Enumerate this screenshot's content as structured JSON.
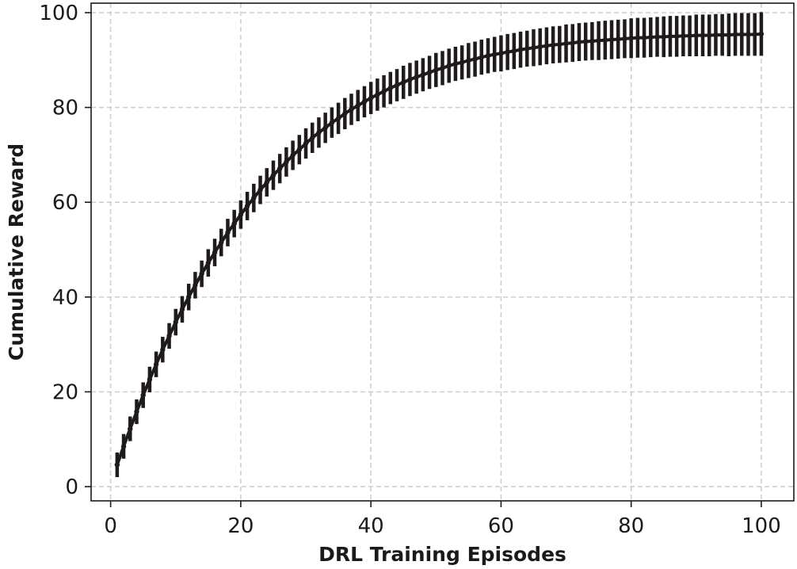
{
  "chart_data": {
    "type": "line",
    "title": "",
    "xlabel": "DRL Training Episodes",
    "ylabel": "Cumulative Reward",
    "xlim": [
      -3,
      105
    ],
    "ylim": [
      -3,
      102
    ],
    "xticks": [
      0,
      20,
      40,
      60,
      80,
      100
    ],
    "yticks": [
      0,
      20,
      40,
      60,
      80,
      100
    ],
    "grid": true,
    "legend": "none",
    "colors": {
      "line": "#1f1a1b",
      "grid": "#cccccc",
      "axis": "#1a1a1a"
    },
    "series": [
      {
        "name": "",
        "x": [
          1,
          2,
          3,
          4,
          5,
          6,
          7,
          8,
          9,
          10,
          11,
          12,
          13,
          14,
          15,
          16,
          17,
          18,
          19,
          20,
          21,
          22,
          23,
          24,
          25,
          26,
          27,
          28,
          29,
          30,
          31,
          32,
          33,
          34,
          35,
          36,
          37,
          38,
          39,
          40,
          41,
          42,
          43,
          44,
          45,
          46,
          47,
          48,
          49,
          50,
          51,
          52,
          53,
          54,
          55,
          56,
          57,
          58,
          59,
          60,
          61,
          62,
          63,
          64,
          65,
          66,
          67,
          68,
          69,
          70,
          71,
          72,
          73,
          74,
          75,
          76,
          77,
          78,
          79,
          80,
          81,
          82,
          83,
          84,
          85,
          86,
          87,
          88,
          89,
          90,
          91,
          92,
          93,
          94,
          95,
          96,
          97,
          98,
          99,
          100
        ],
        "y": [
          4.6,
          8.5,
          12.2,
          15.8,
          19.3,
          22.6,
          25.8,
          28.9,
          31.8,
          34.7,
          37.4,
          40.0,
          42.5,
          44.9,
          47.2,
          49.4,
          51.5,
          53.6,
          55.5,
          57.4,
          59.2,
          60.9,
          62.6,
          64.2,
          65.7,
          67.1,
          68.5,
          69.9,
          71.1,
          72.4,
          73.6,
          74.7,
          75.7,
          76.8,
          77.7,
          78.7,
          79.6,
          80.4,
          81.2,
          82.0,
          82.7,
          83.4,
          84.1,
          84.7,
          85.3,
          85.9,
          86.4,
          86.9,
          87.4,
          87.9,
          88.3,
          88.8,
          89.2,
          89.5,
          89.9,
          90.2,
          90.6,
          90.9,
          91.2,
          91.4,
          91.7,
          91.9,
          92.2,
          92.4,
          92.6,
          92.8,
          93.0,
          93.2,
          93.3,
          93.5,
          93.6,
          93.8,
          93.9,
          94.0,
          94.1,
          94.2,
          94.3,
          94.4,
          94.5,
          94.6,
          94.7,
          94.7,
          94.8,
          94.9,
          94.9,
          95.0,
          95.0,
          95.1,
          95.1,
          95.2,
          95.2,
          95.2,
          95.3,
          95.3,
          95.3,
          95.4,
          95.4,
          95.4,
          95.4,
          95.5
        ],
        "err": [
          2.6,
          2.6,
          2.6,
          2.6,
          2.7,
          2.7,
          2.7,
          2.7,
          2.7,
          2.8,
          2.8,
          2.8,
          2.8,
          2.8,
          2.9,
          2.9,
          2.9,
          2.9,
          2.9,
          3.0,
          3.0,
          3.0,
          3.0,
          3.0,
          3.1,
          3.1,
          3.1,
          3.1,
          3.1,
          3.2,
          3.2,
          3.2,
          3.2,
          3.2,
          3.3,
          3.3,
          3.3,
          3.3,
          3.3,
          3.4,
          3.4,
          3.4,
          3.4,
          3.4,
          3.5,
          3.5,
          3.5,
          3.5,
          3.5,
          3.6,
          3.6,
          3.6,
          3.6,
          3.6,
          3.7,
          3.7,
          3.7,
          3.7,
          3.7,
          3.8,
          3.8,
          3.8,
          3.8,
          3.8,
          3.9,
          3.9,
          3.9,
          3.9,
          3.9,
          4.0,
          4.0,
          4.0,
          4.0,
          4.0,
          4.1,
          4.1,
          4.1,
          4.1,
          4.1,
          4.2,
          4.2,
          4.2,
          4.2,
          4.2,
          4.3,
          4.3,
          4.3,
          4.3,
          4.3,
          4.4,
          4.4,
          4.4,
          4.4,
          4.4,
          4.5,
          4.5,
          4.5,
          4.5,
          4.5,
          4.6
        ]
      }
    ]
  }
}
